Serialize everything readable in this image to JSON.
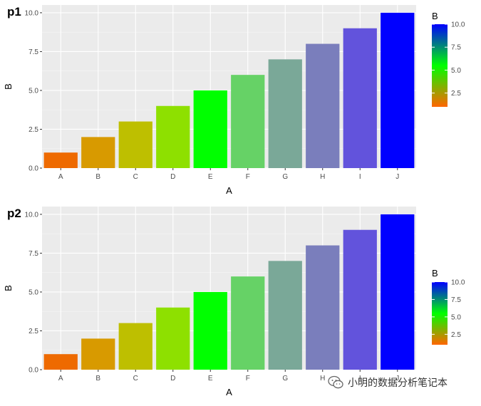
{
  "colors": {
    "panel_bg": "#EBEBEB",
    "grid_major": "#FFFFFF",
    "axis_text": "#4D4D4D",
    "title_text": "#000000",
    "gradient": [
      "#FF6600",
      "#00FF00",
      "#0000FF"
    ]
  },
  "watermark": {
    "icon": "wechat-icon",
    "text": "小明的数据分析笔记本"
  },
  "chart_data": [
    {
      "type": "bar",
      "tag": "p1",
      "xlabel": "A",
      "ylabel": "B",
      "categories": [
        "A",
        "B",
        "C",
        "D",
        "E",
        "F",
        "G",
        "H",
        "I",
        "J"
      ],
      "values": [
        1,
        2,
        3,
        4,
        5,
        6,
        7,
        8,
        9,
        10
      ],
      "bar_colors": [
        "#EE6A00",
        "#D89A00",
        "#BEBF00",
        "#8EE000",
        "#00FF00",
        "#66D266",
        "#7AA898",
        "#7A7EBC",
        "#6253DC",
        "#0000FF"
      ],
      "ylim": [
        0,
        10.5
      ],
      "yticks": [
        0,
        2.5,
        5,
        7.5,
        10
      ],
      "ytick_labels": [
        "0.0",
        "2.5",
        "5.0",
        "7.5",
        "10.0"
      ],
      "grid": true,
      "legend": {
        "title": "B",
        "type": "colorbar",
        "position": "right-top",
        "range": [
          1,
          10
        ],
        "ticks": [
          2.5,
          5,
          7.5,
          10
        ],
        "tick_labels": [
          "2.5",
          "5.0",
          "7.5",
          "10.0"
        ]
      }
    },
    {
      "type": "bar",
      "tag": "p2",
      "xlabel": "A",
      "ylabel": "B",
      "categories": [
        "A",
        "B",
        "C",
        "D",
        "E",
        "F",
        "G",
        "H",
        "I",
        "J"
      ],
      "values": [
        1,
        2,
        3,
        4,
        5,
        6,
        7,
        8,
        9,
        10
      ],
      "bar_colors": [
        "#EE6A00",
        "#D89A00",
        "#BEBF00",
        "#8EE000",
        "#00FF00",
        "#66D266",
        "#7AA898",
        "#7A7EBC",
        "#6253DC",
        "#0000FF"
      ],
      "ylim": [
        0,
        10.5
      ],
      "yticks": [
        0,
        2.5,
        5,
        7.5,
        10
      ],
      "ytick_labels": [
        "0.0",
        "2.5",
        "5.0",
        "7.5",
        "10.0"
      ],
      "grid": true,
      "legend": {
        "title": "B",
        "type": "colorbar",
        "position": "right-center",
        "range": [
          1,
          10
        ],
        "ticks": [
          2.5,
          5,
          7.5,
          10
        ],
        "tick_labels": [
          "2.5",
          "5.0",
          "7.5",
          "10.0"
        ]
      }
    }
  ]
}
